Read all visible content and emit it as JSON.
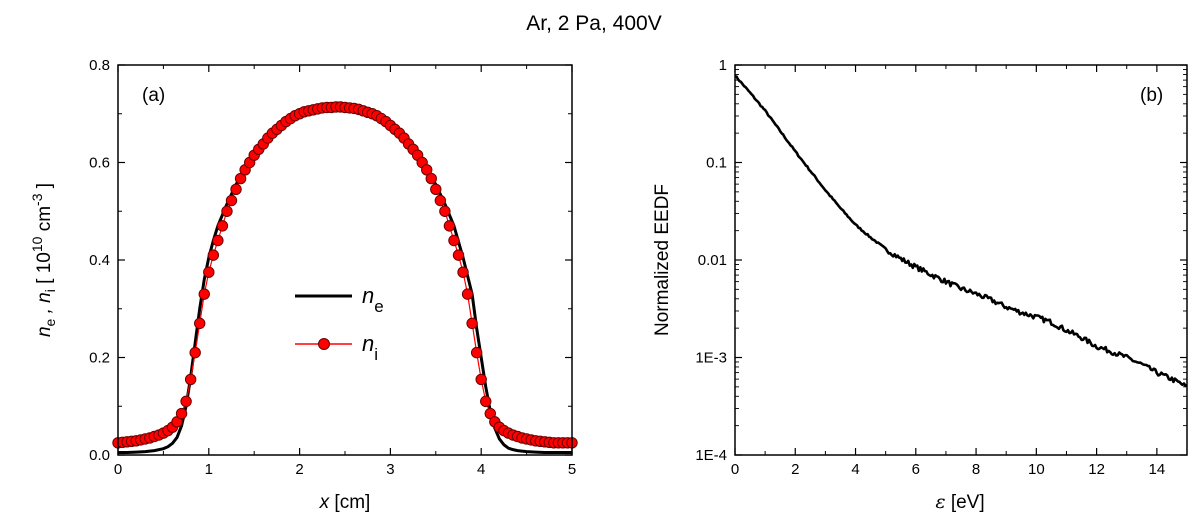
{
  "figure": {
    "title": "Ar, 2 Pa, 400V"
  },
  "chart_data": [
    {
      "type": "scatter",
      "panel_label": "(a)",
      "xlabel": {
        "var": "x",
        "unit": " [cm]"
      },
      "ylabel": {
        "prefix": "n",
        "sub1": "e",
        "mid": " , n",
        "sub2": "i",
        "open": " [ 10",
        "sup1": "10",
        "unit": " cm",
        "sup2": "-3",
        "close": " ]"
      },
      "xlim": [
        0,
        5
      ],
      "ylim": [
        0,
        0.8
      ],
      "xticks": [
        0,
        1,
        2,
        3,
        4,
        5
      ],
      "yticks": [
        0.0,
        0.2,
        0.4,
        0.6,
        0.8
      ],
      "xtick_labels": [
        "0",
        "1",
        "2",
        "3",
        "4",
        "5"
      ],
      "ytick_labels": [
        "0.0",
        "0.2",
        "0.4",
        "0.6",
        "0.8"
      ],
      "legend": {
        "placement": "center-left",
        "entries": [
          {
            "symbol": "n",
            "sub": "e"
          },
          {
            "symbol": "n",
            "sub": "i"
          }
        ]
      },
      "series": [
        {
          "name": "n_e",
          "style": "line",
          "color": "#000000",
          "x": [
            0,
            0.1,
            0.2,
            0.3,
            0.4,
            0.5,
            0.55,
            0.6,
            0.65,
            0.7,
            0.75,
            0.8,
            0.85,
            0.9,
            0.95,
            1.0,
            1.05,
            1.1,
            1.2,
            1.3,
            1.4,
            1.5,
            1.6,
            1.7,
            1.8,
            1.9,
            2.0,
            2.1,
            2.2,
            2.3,
            2.4,
            2.5,
            2.6,
            2.7,
            2.8,
            2.9,
            3.0,
            3.1,
            3.2,
            3.3,
            3.4,
            3.5,
            3.6,
            3.7,
            3.8,
            3.9,
            3.95,
            4.0,
            4.05,
            4.1,
            4.15,
            4.2,
            4.25,
            4.3,
            4.35,
            4.4,
            4.45,
            4.5,
            4.6,
            4.7,
            4.8,
            4.9,
            5.0
          ],
          "y": [
            0.005,
            0.005,
            0.006,
            0.007,
            0.009,
            0.013,
            0.017,
            0.024,
            0.036,
            0.06,
            0.1,
            0.16,
            0.23,
            0.3,
            0.36,
            0.405,
            0.44,
            0.47,
            0.515,
            0.555,
            0.585,
            0.612,
            0.635,
            0.655,
            0.672,
            0.686,
            0.695,
            0.702,
            0.706,
            0.709,
            0.71,
            0.71,
            0.708,
            0.703,
            0.696,
            0.686,
            0.672,
            0.655,
            0.635,
            0.612,
            0.585,
            0.555,
            0.515,
            0.47,
            0.405,
            0.33,
            0.26,
            0.2,
            0.14,
            0.09,
            0.055,
            0.033,
            0.021,
            0.014,
            0.011,
            0.009,
            0.008,
            0.007,
            0.006,
            0.005,
            0.005,
            0.005,
            0.005
          ]
        },
        {
          "name": "n_i",
          "style": "line-markers",
          "color": "#ff0000",
          "marker_edge": "#6b0000",
          "x": [
            0,
            0.05,
            0.1,
            0.15,
            0.2,
            0.25,
            0.3,
            0.35,
            0.4,
            0.45,
            0.5,
            0.55,
            0.6,
            0.65,
            0.7,
            0.75,
            0.8,
            0.85,
            0.9,
            0.95,
            1.0,
            1.05,
            1.1,
            1.15,
            1.2,
            1.25,
            1.3,
            1.35,
            1.4,
            1.45,
            1.5,
            1.55,
            1.6,
            1.65,
            1.7,
            1.75,
            1.8,
            1.85,
            1.9,
            1.95,
            2.0,
            2.05,
            2.1,
            2.15,
            2.2,
            2.25,
            2.3,
            2.35,
            2.4,
            2.45,
            2.5,
            2.55,
            2.6,
            2.65,
            2.7,
            2.75,
            2.8,
            2.85,
            2.9,
            2.95,
            3.0,
            3.05,
            3.1,
            3.15,
            3.2,
            3.25,
            3.3,
            3.35,
            3.4,
            3.45,
            3.5,
            3.55,
            3.6,
            3.65,
            3.7,
            3.75,
            3.8,
            3.85,
            3.9,
            3.95,
            4.0,
            4.05,
            4.1,
            4.15,
            4.2,
            4.25,
            4.3,
            4.35,
            4.4,
            4.45,
            4.5,
            4.55,
            4.6,
            4.65,
            4.7,
            4.75,
            4.8,
            4.85,
            4.9,
            4.95,
            5.0
          ],
          "y": [
            0.025,
            0.026,
            0.027,
            0.028,
            0.029,
            0.031,
            0.033,
            0.035,
            0.038,
            0.041,
            0.045,
            0.05,
            0.057,
            0.068,
            0.085,
            0.11,
            0.155,
            0.21,
            0.27,
            0.33,
            0.375,
            0.41,
            0.44,
            0.47,
            0.5,
            0.522,
            0.545,
            0.567,
            0.585,
            0.6,
            0.615,
            0.627,
            0.638,
            0.65,
            0.66,
            0.668,
            0.676,
            0.684,
            0.69,
            0.696,
            0.7,
            0.704,
            0.706,
            0.708,
            0.71,
            0.712,
            0.713,
            0.713,
            0.714,
            0.714,
            0.713,
            0.712,
            0.711,
            0.709,
            0.706,
            0.703,
            0.7,
            0.696,
            0.69,
            0.684,
            0.676,
            0.668,
            0.66,
            0.65,
            0.638,
            0.627,
            0.615,
            0.6,
            0.585,
            0.567,
            0.545,
            0.522,
            0.5,
            0.47,
            0.44,
            0.41,
            0.375,
            0.33,
            0.27,
            0.21,
            0.155,
            0.11,
            0.085,
            0.068,
            0.057,
            0.05,
            0.045,
            0.041,
            0.038,
            0.035,
            0.033,
            0.031,
            0.029,
            0.028,
            0.027,
            0.026,
            0.025,
            0.025,
            0.025,
            0.025,
            0.025
          ]
        }
      ]
    },
    {
      "type": "line",
      "panel_label": "(b)",
      "xlabel": {
        "var": "ε",
        "unit": "  [eV]"
      },
      "ylabel": "Normalized EEDF",
      "xlim": [
        0,
        15
      ],
      "ylim": [
        0.0001,
        1
      ],
      "yscale": "log",
      "xticks": [
        0,
        2,
        4,
        6,
        8,
        10,
        12,
        14
      ],
      "xtick_labels": [
        "0",
        "2",
        "4",
        "6",
        "8",
        "10",
        "12",
        "14"
      ],
      "yticks": [
        0.0001,
        0.001,
        0.01,
        0.1,
        1
      ],
      "ytick_labels": [
        "1E-4",
        "1E-3",
        "0.01",
        "0.1",
        "1"
      ],
      "series": [
        {
          "name": "",
          "color": "#000000",
          "x": [
            0,
            0.5,
            1,
            1.5,
            2,
            2.5,
            3,
            3.5,
            4,
            4.5,
            5,
            5.5,
            6,
            6.5,
            7,
            7.5,
            8,
            8.5,
            9,
            9.5,
            10,
            10.5,
            11,
            11.5,
            12,
            12.5,
            13,
            13.5,
            14,
            14.5,
            15
          ],
          "y": [
            0.78,
            0.52,
            0.34,
            0.21,
            0.13,
            0.082,
            0.052,
            0.034,
            0.023,
            0.017,
            0.013,
            0.0103,
            0.0085,
            0.0071,
            0.006,
            0.0051,
            0.0045,
            0.0039,
            0.0033,
            0.0029,
            0.0026,
            0.0023,
            0.0019,
            0.0016,
            0.0013,
            0.00115,
            0.001,
            0.00085,
            0.0007,
            0.0006,
            0.0005
          ]
        }
      ]
    }
  ]
}
